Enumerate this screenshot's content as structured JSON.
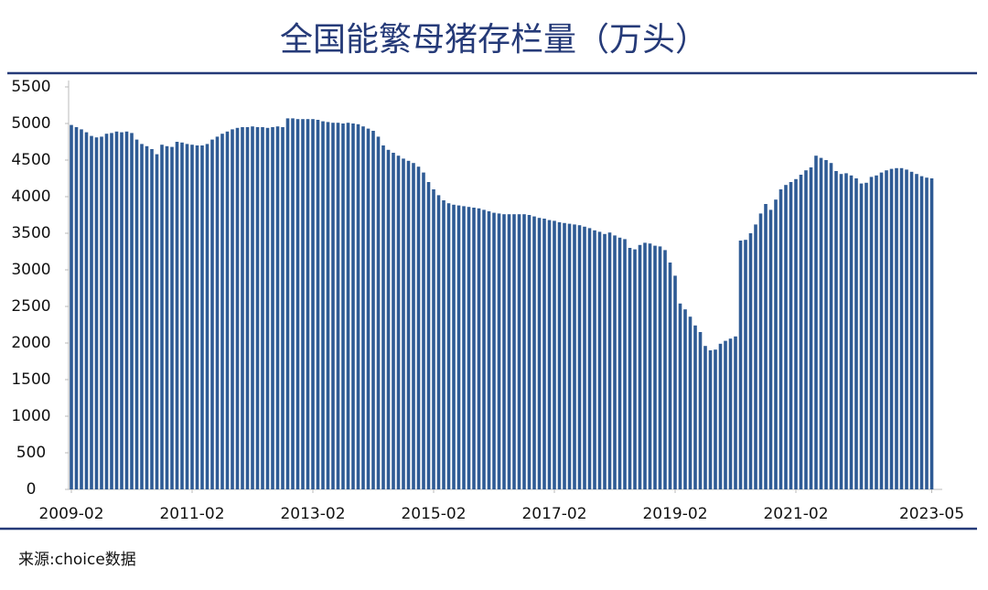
{
  "chart_data": {
    "type": "bar",
    "title": "全国能繁母猪存栏量（万头）",
    "source": "来源:choice数据",
    "color": "#2f5b95",
    "x": [
      "2009-02",
      "2009-03",
      "2009-04",
      "2009-05",
      "2009-06",
      "2009-07",
      "2009-08",
      "2009-09",
      "2009-10",
      "2009-11",
      "2009-12",
      "2010-01",
      "2010-02",
      "2010-03",
      "2010-04",
      "2010-05",
      "2010-06",
      "2010-07",
      "2010-08",
      "2010-09",
      "2010-10",
      "2010-11",
      "2010-12",
      "2011-01",
      "2011-02",
      "2011-03",
      "2011-04",
      "2011-05",
      "2011-06",
      "2011-07",
      "2011-08",
      "2011-09",
      "2011-10",
      "2011-11",
      "2011-12",
      "2012-01",
      "2012-02",
      "2012-03",
      "2012-04",
      "2012-05",
      "2012-06",
      "2012-07",
      "2012-08",
      "2012-09",
      "2012-10",
      "2012-11",
      "2012-12",
      "2013-01",
      "2013-02",
      "2013-03",
      "2013-04",
      "2013-05",
      "2013-06",
      "2013-07",
      "2013-08",
      "2013-09",
      "2013-10",
      "2013-11",
      "2013-12",
      "2014-01",
      "2014-02",
      "2014-03",
      "2014-04",
      "2014-05",
      "2014-06",
      "2014-07",
      "2014-08",
      "2014-09",
      "2014-10",
      "2014-11",
      "2014-12",
      "2015-01",
      "2015-02",
      "2015-03",
      "2015-04",
      "2015-05",
      "2015-06",
      "2015-07",
      "2015-08",
      "2015-09",
      "2015-10",
      "2015-11",
      "2015-12",
      "2016-01",
      "2016-02",
      "2016-03",
      "2016-04",
      "2016-05",
      "2016-06",
      "2016-07",
      "2016-08",
      "2016-09",
      "2016-10",
      "2016-11",
      "2016-12",
      "2017-01",
      "2017-02",
      "2017-03",
      "2017-04",
      "2017-05",
      "2017-06",
      "2017-07",
      "2017-08",
      "2017-09",
      "2017-10",
      "2017-11",
      "2017-12",
      "2018-01",
      "2018-02",
      "2018-03",
      "2018-04",
      "2018-05",
      "2018-06",
      "2018-07",
      "2018-08",
      "2018-09",
      "2018-10",
      "2018-11",
      "2018-12",
      "2019-01",
      "2019-02",
      "2019-03",
      "2019-04",
      "2019-05",
      "2019-06",
      "2019-07",
      "2019-08",
      "2019-09",
      "2019-10",
      "2019-11",
      "2019-12",
      "2020-01",
      "2020-02",
      "2020-03",
      "2020-04",
      "2020-05",
      "2020-06",
      "2020-07",
      "2020-08",
      "2020-09",
      "2020-10",
      "2020-11",
      "2020-12",
      "2021-01",
      "2021-02",
      "2021-03",
      "2021-04",
      "2021-05",
      "2021-06",
      "2021-07",
      "2021-08",
      "2021-09",
      "2021-10",
      "2021-11",
      "2021-12",
      "2022-01",
      "2022-02",
      "2022-03",
      "2022-04",
      "2022-05",
      "2022-06",
      "2022-07",
      "2022-08",
      "2022-09",
      "2022-10",
      "2022-11",
      "2022-12",
      "2023-01",
      "2023-02",
      "2023-03",
      "2023-04",
      "2023-05"
    ],
    "values": [
      4980,
      4950,
      4920,
      4880,
      4830,
      4810,
      4820,
      4860,
      4870,
      4890,
      4880,
      4890,
      4870,
      4780,
      4720,
      4690,
      4650,
      4580,
      4710,
      4690,
      4680,
      4750,
      4740,
      4720,
      4710,
      4700,
      4700,
      4720,
      4780,
      4820,
      4860,
      4890,
      4920,
      4940,
      4950,
      4950,
      4960,
      4950,
      4950,
      4940,
      4950,
      4960,
      4950,
      5070,
      5070,
      5060,
      5060,
      5060,
      5060,
      5050,
      5030,
      5020,
      5010,
      5010,
      5000,
      5010,
      5000,
      4990,
      4960,
      4930,
      4900,
      4820,
      4700,
      4640,
      4600,
      4560,
      4520,
      4490,
      4460,
      4410,
      4330,
      4200,
      4100,
      4020,
      3950,
      3910,
      3890,
      3880,
      3870,
      3860,
      3850,
      3840,
      3820,
      3800,
      3780,
      3770,
      3760,
      3760,
      3760,
      3760,
      3760,
      3750,
      3730,
      3710,
      3700,
      3680,
      3670,
      3650,
      3640,
      3630,
      3620,
      3610,
      3590,
      3570,
      3540,
      3520,
      3490,
      3510,
      3470,
      3440,
      3420,
      3300,
      3280,
      3340,
      3370,
      3360,
      3330,
      3320,
      3270,
      3100,
      2920,
      2540,
      2460,
      2360,
      2240,
      2150,
      1960,
      1900,
      1910,
      1990,
      2030,
      2060,
      2090,
      3400,
      3410,
      3500,
      3620,
      3770,
      3900,
      3820,
      3960,
      4100,
      4160,
      4200,
      4240,
      4300,
      4360,
      4400,
      4560,
      4530,
      4500,
      4460,
      4350,
      4310,
      4320,
      4290,
      4250,
      4180,
      4190,
      4270,
      4290,
      4330,
      4360,
      4380,
      4390,
      4390,
      4370,
      4340,
      4310,
      4280,
      4260,
      4250
    ],
    "xticks": [
      "2009-02",
      "2011-02",
      "2013-02",
      "2015-02",
      "2017-02",
      "2019-02",
      "2021-02",
      "2023-05"
    ],
    "ylim": [
      0,
      5500
    ],
    "yticks": [
      0,
      500,
      1000,
      1500,
      2000,
      2500,
      3000,
      3500,
      4000,
      4500,
      5000,
      5500
    ]
  }
}
